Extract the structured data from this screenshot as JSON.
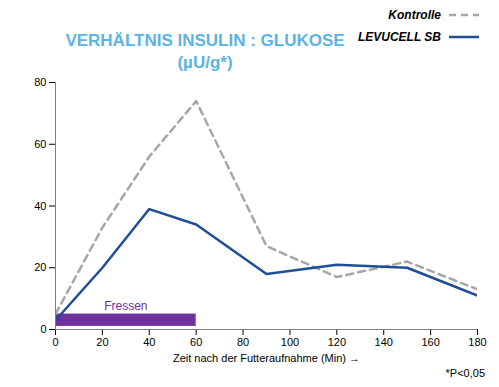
{
  "chart_data": {
    "type": "line",
    "title": "VERHÄLTNIS INSULIN : GLUKOSE",
    "subtitle": "(µU/g*)",
    "x_label": "Zeit nach der Futteraufnahme (Min)",
    "x": [
      0,
      20,
      40,
      60,
      90,
      120,
      150,
      180
    ],
    "series": [
      {
        "name": "Kontrolle",
        "color": "#a6a6a6",
        "line_style": "dashed",
        "values": [
          5,
          33,
          56,
          74,
          27,
          17,
          22,
          13
        ]
      },
      {
        "name": "LEVUCELL SB",
        "color": "#1f4e96",
        "line_style": "solid",
        "values": [
          3,
          20,
          39,
          34,
          18,
          21,
          20,
          11
        ]
      }
    ],
    "xlim": [
      0,
      180
    ],
    "xticks": [
      0,
      20,
      40,
      60,
      80,
      100,
      120,
      140,
      160,
      180
    ],
    "ylim": [
      0,
      80
    ],
    "yticks": [
      0,
      20,
      40,
      60,
      80
    ],
    "legend": "top-right",
    "annotations": [
      {
        "text": "Fressen",
        "x": [
          0,
          60
        ],
        "y": [
          1,
          5
        ],
        "color": "#7030a0"
      }
    ],
    "note": "*P<0,05",
    "title_color": "#5bb4e5"
  }
}
